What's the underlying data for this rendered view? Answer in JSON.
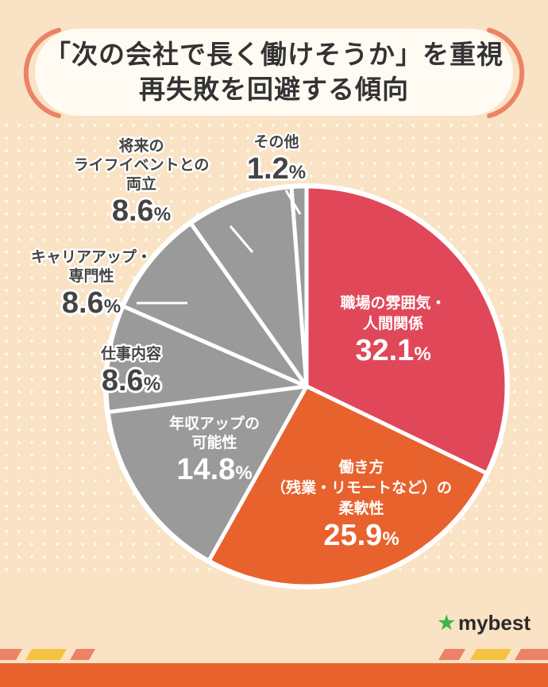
{
  "title": {
    "line1": "「次の会社で長く働けそうか」を重視",
    "line2": "再失敗を回避する傾向"
  },
  "logo": {
    "text": "mybest",
    "icon": "star-icon"
  },
  "colors": {
    "background": "#f9e3c4",
    "accent": "#ec8266",
    "slice_red": "#e0485a",
    "slice_orange": "#e8622e",
    "slice_gray": "#9a9a9a",
    "text_dark": "#444444"
  },
  "chart_data": {
    "type": "pie",
    "title": "「次の会社で長く働けそうか」を重視 再失敗を回避する傾向",
    "slices": [
      {
        "label_lines": [
          "職場の雰囲気・",
          "人間関係"
        ],
        "value": 32.1,
        "value_label": "32.1",
        "color": "#e0485a"
      },
      {
        "label_lines": [
          "働き方",
          "（残業・リモートなど）の",
          "柔軟性"
        ],
        "value": 25.9,
        "value_label": "25.9",
        "color": "#e8622e"
      },
      {
        "label_lines": [
          "年収アップの",
          "可能性"
        ],
        "value": 14.8,
        "value_label": "14.8",
        "color": "#9a9a9a"
      },
      {
        "label_lines": [
          "仕事内容"
        ],
        "value": 8.6,
        "value_label": "8.6",
        "color": "#9a9a9a"
      },
      {
        "label_lines": [
          "キャリアアップ・",
          "専門性"
        ],
        "value": 8.6,
        "value_label": "8.6",
        "color": "#9a9a9a"
      },
      {
        "label_lines": [
          "将来の",
          "ライフイベントとの",
          "両立"
        ],
        "value": 8.6,
        "value_label": "8.6",
        "color": "#9a9a9a"
      },
      {
        "label_lines": [
          "その他"
        ],
        "value": 1.2,
        "value_label": "1.2",
        "color": "#9a9a9a"
      }
    ],
    "unit": "%"
  }
}
